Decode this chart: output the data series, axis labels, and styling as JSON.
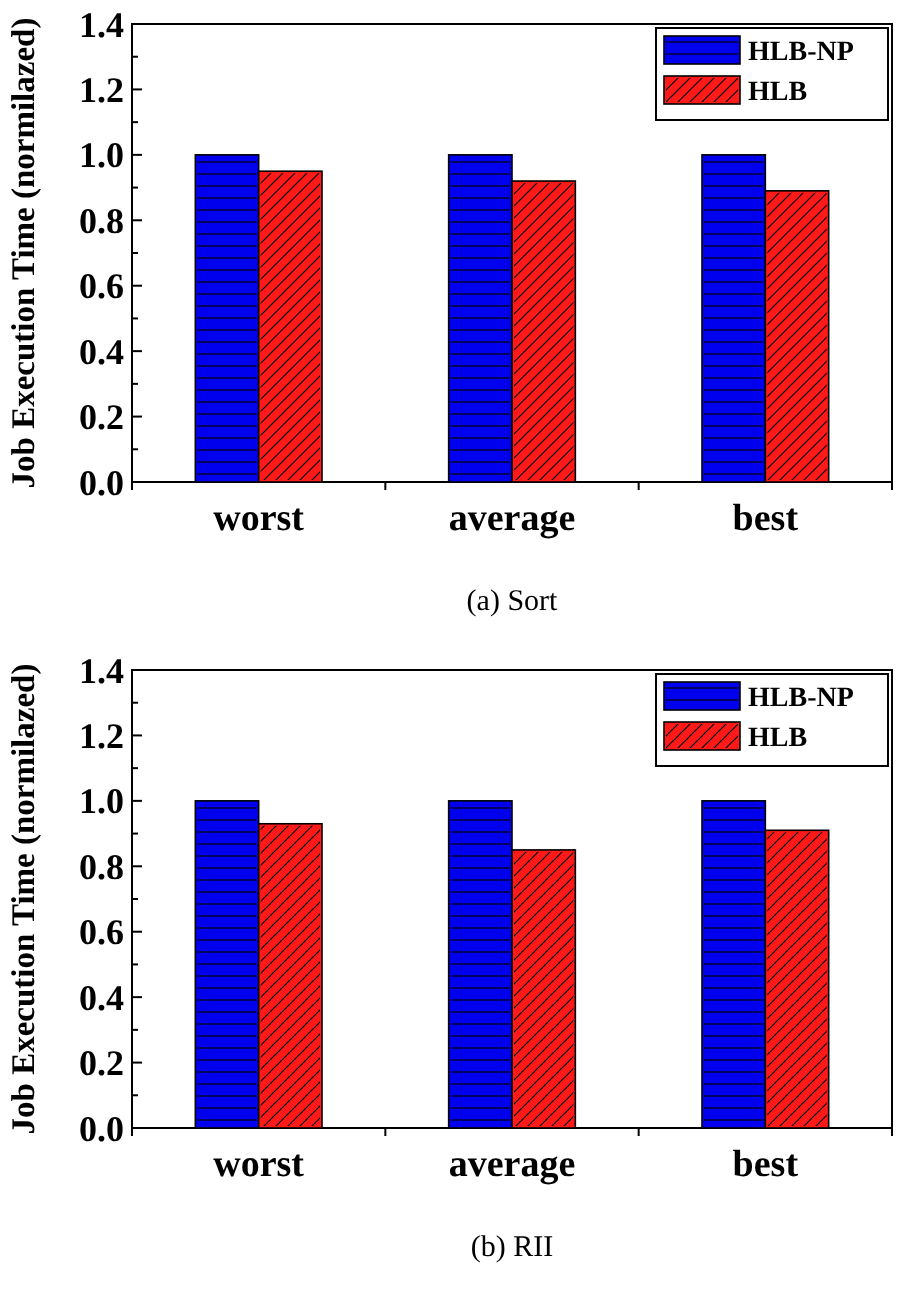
{
  "chart_data": [
    {
      "type": "bar",
      "title": "(a) Sort",
      "ylabel": "Job Execution Time (normilazed)",
      "categories": [
        "worst",
        "average",
        "best"
      ],
      "series": [
        {
          "name": "HLB-NP",
          "color": "#0000ee",
          "values": [
            1.0,
            1.0,
            1.0
          ]
        },
        {
          "name": "HLB",
          "color": "#ff1a1a",
          "values": [
            0.95,
            0.92,
            0.89
          ]
        }
      ],
      "ylim": [
        0,
        1.4
      ],
      "yticks": [
        {
          "value": 0,
          "label": "0.0"
        },
        {
          "value": 0.2,
          "label": "0.2"
        },
        {
          "value": 0.4,
          "label": "0.4"
        },
        {
          "value": 0.6,
          "label": "0.6"
        },
        {
          "value": 0.8,
          "label": "0.8"
        },
        {
          "value": 1,
          "label": "1.0"
        },
        {
          "value": 1.2,
          "label": "1.2"
        },
        {
          "value": 1.4,
          "label": "1.4"
        }
      ],
      "legend": "top right"
    },
    {
      "type": "bar",
      "title": "(b) RII",
      "ylabel": "Job Execution Time (normilazed)",
      "categories": [
        "worst",
        "average",
        "best"
      ],
      "series": [
        {
          "name": "HLB-NP",
          "color": "#0000ee",
          "values": [
            1.0,
            1.0,
            1.0
          ]
        },
        {
          "name": "HLB",
          "color": "#ff1a1a",
          "values": [
            0.93,
            0.85,
            0.91
          ]
        }
      ],
      "ylim": [
        0,
        1.4
      ],
      "yticks": [
        {
          "value": 0,
          "label": "0.0"
        },
        {
          "value": 0.2,
          "label": "0.2"
        },
        {
          "value": 0.4,
          "label": "0.4"
        },
        {
          "value": 0.6,
          "label": "0.6"
        },
        {
          "value": 0.8,
          "label": "0.8"
        },
        {
          "value": 1,
          "label": "1.0"
        },
        {
          "value": 1.2,
          "label": "1.2"
        },
        {
          "value": 1.4,
          "label": "1.4"
        }
      ],
      "legend": "top right"
    }
  ]
}
